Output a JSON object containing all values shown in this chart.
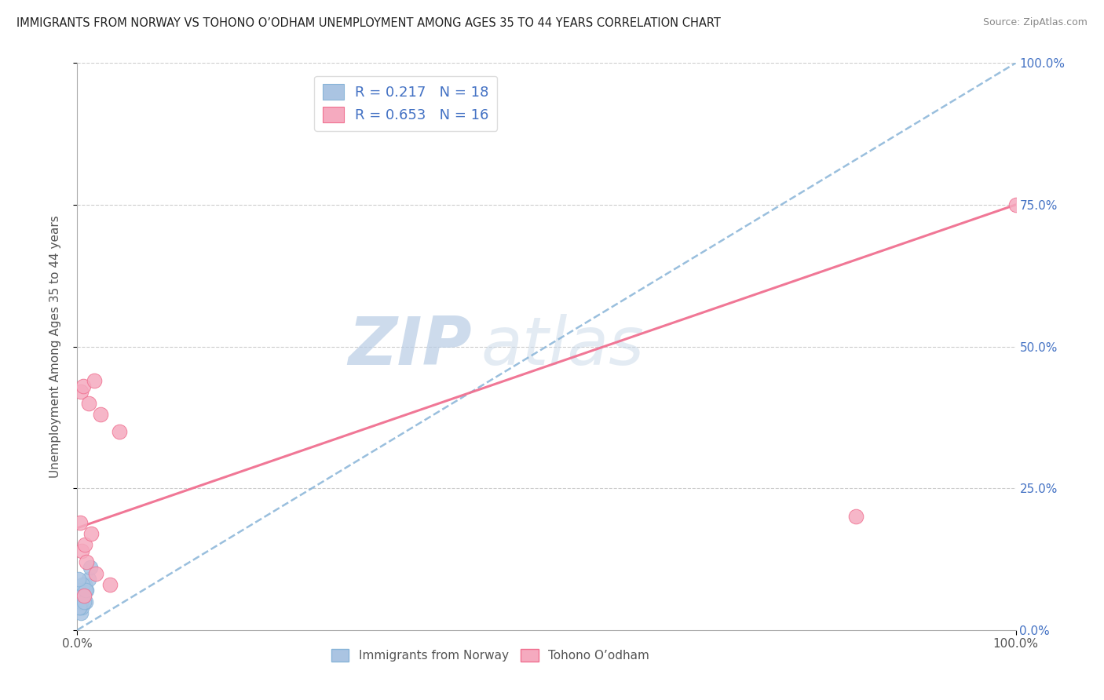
{
  "title": "IMMIGRANTS FROM NORWAY VS TOHONO O’ODHAM UNEMPLOYMENT AMONG AGES 35 TO 44 YEARS CORRELATION CHART",
  "source": "Source: ZipAtlas.com",
  "ylabel": "Unemployment Among Ages 35 to 44 years",
  "legend_norway": "Immigrants from Norway",
  "legend_tohono": "Tohono O’odham",
  "R_norway": 0.217,
  "N_norway": 18,
  "R_tohono": 0.653,
  "N_tohono": 16,
  "norway_color": "#aac4e2",
  "tohono_color": "#f5aabf",
  "norway_line_color": "#88b4d8",
  "tohono_line_color": "#f07090",
  "norway_x": [
    0.3,
    0.4,
    0.5,
    0.6,
    0.8,
    0.9,
    1.0,
    1.2,
    1.4,
    0.2,
    0.35,
    0.15,
    0.25,
    0.45,
    0.55,
    0.7,
    0.85,
    0.1
  ],
  "norway_y": [
    5,
    3,
    4,
    6,
    8,
    5,
    7,
    9,
    11,
    4,
    5,
    7,
    4,
    6,
    8,
    5,
    7,
    9
  ],
  "tohono_x": [
    0.3,
    0.5,
    0.8,
    1.0,
    1.5,
    2.0,
    2.5,
    0.4,
    0.6,
    1.2,
    1.8,
    0.7,
    3.5,
    83.0,
    4.5,
    100.0
  ],
  "tohono_y": [
    19,
    14,
    15,
    12,
    17,
    10,
    38,
    42,
    43,
    40,
    44,
    6,
    8,
    20,
    35,
    75
  ],
  "norway_trend": [
    0,
    100,
    0,
    100
  ],
  "tohono_trend": [
    0,
    100,
    18,
    75
  ],
  "background_color": "#ffffff",
  "grid_color": "#cccccc",
  "watermark_text": "ZIP",
  "watermark_text2": "atlas"
}
